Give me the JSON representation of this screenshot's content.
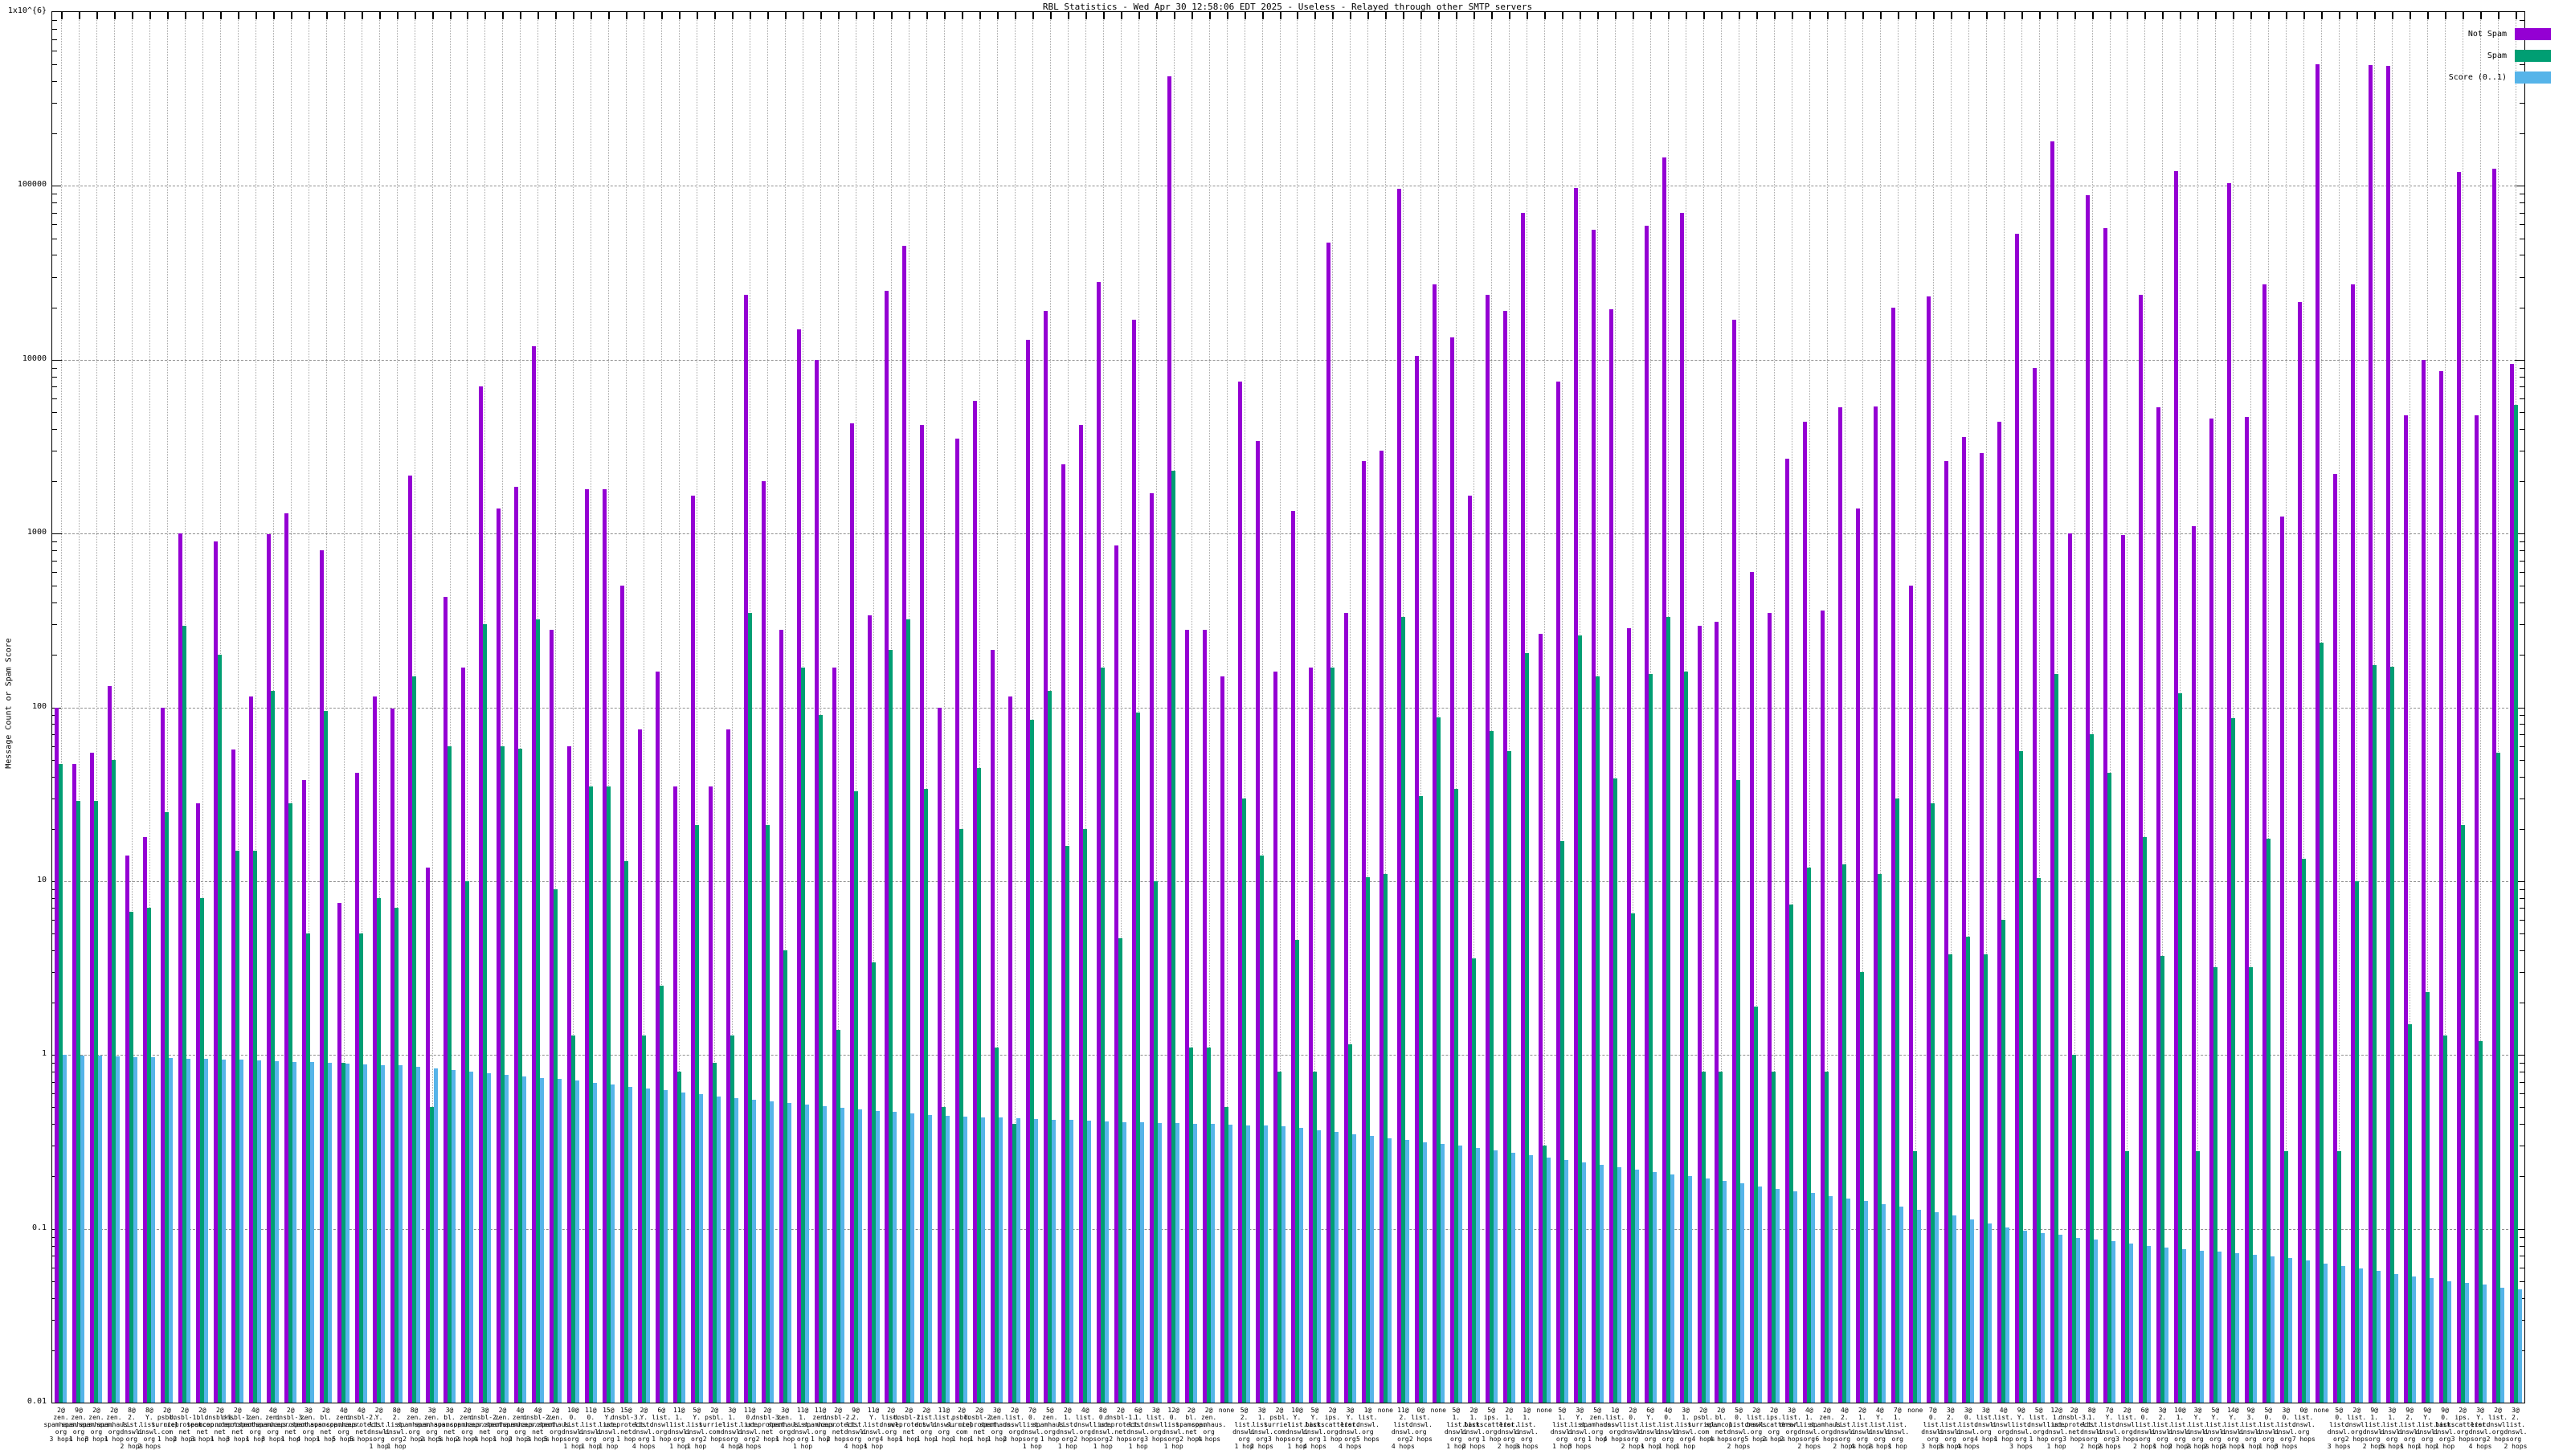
{
  "title": "RBL Statistics - Wed Apr 30 12:58:06 EDT 2025 - Useless - Relayed through other SMTP servers",
  "y_axis": {
    "label": "Message Count or Spam Score",
    "ticks": [
      "1x10^{6}",
      "100000",
      "10000",
      "1000",
      "100",
      "10",
      "1",
      "0.1",
      "0.01"
    ]
  },
  "legend": [
    {
      "label": "Not Spam",
      "color": "#9400d3"
    },
    {
      "label": "Spam",
      "color": "#009e73"
    },
    {
      "label": "Score (0..1)",
      "color": "#56b4e9"
    }
  ],
  "chart_data": {
    "type": "bar",
    "title": "RBL Statistics - Wed Apr 30 12:58:06 EDT 2025 - Useless - Relayed through other SMTP servers",
    "ylabel": "Message Count or Spam Score",
    "xlabel": "",
    "y_scale": "log",
    "ylim": [
      0.01,
      1000000
    ],
    "grid": true,
    "legend_position": "top-right",
    "series_names": [
      "Not Spam",
      "Spam",
      "Score (0..1)"
    ],
    "colors": {
      "not_spam": "#9400d3",
      "spam": "#009e73",
      "score": "#56b4e9"
    },
    "columns": [
      "label",
      "not_spam",
      "spam",
      "score"
    ],
    "groups": [
      [
        "2@zen.spamhaus.org 3 hops",
        100,
        47,
        1.0
      ],
      [
        "9@zen.spamhaus.org 1 hop",
        47,
        29,
        0.993
      ],
      [
        "2@zen.spamhaus.org 3 hops",
        55,
        29,
        0.987
      ],
      [
        "2@zen.spamhaus.org 1 hop",
        132,
        50,
        0.98
      ],
      [
        "8@2.list.dnswl.org 2 hops",
        14,
        6.7,
        0.974
      ],
      [
        "8@Y.list.dnswl.org 2 hops",
        18,
        7,
        0.968
      ],
      [
        "2@psbl.surriel.com 1 hop",
        100,
        25,
        0.961
      ],
      [
        "2@dnsbl-1.uceprotect.net 2 hops",
        1000,
        295,
        0.955
      ],
      [
        "2@bl.spamcop.net 3 hops",
        28,
        8,
        0.949
      ],
      [
        "2@dnsbl-1.uceprotect.net 1 hop",
        900,
        200,
        0.942
      ],
      [
        "2@dnsbl-1.uceprotect.net 3 hops",
        57,
        15,
        0.936
      ],
      [
        "4@zen.spamhaus.org 1 hop",
        115,
        15,
        0.93
      ],
      [
        "4@zen.spamhaus.org 3 hops",
        990,
        125,
        0.922
      ],
      [
        "2@dnsbl-3.uceprotect.net 1 hop",
        1300,
        28,
        0.915
      ],
      [
        "3@zen.spamhaus.org 4 hops",
        38,
        5,
        0.907
      ],
      [
        "2@bl.spamcop.net 1 hop",
        800,
        95,
        0.9
      ],
      [
        "4@zen.spamhaus.org 5 hops",
        7.5,
        0.9,
        0.892
      ],
      [
        "4@dnsbl-2.uceprotect.net 5 hops",
        42,
        5,
        0.885
      ],
      [
        "2@Y.list.dnswl.org 1 hop",
        115,
        8,
        0.877
      ],
      [
        "8@2.list.dnswl.org 1 hop",
        98,
        7,
        0.87
      ],
      [
        "8@zen.spamhaus.org 2 hops",
        2150,
        150,
        0.852
      ],
      [
        "3@zen.spamhaus.org 2 hops",
        12,
        0.5,
        0.835
      ],
      [
        "3@bl.spamcop.net 5 hops",
        430,
        60,
        0.819
      ],
      [
        "2@zen.spamhaus.org 2 hops",
        170,
        10,
        0.802
      ],
      [
        "3@dnsbl-2.uceprotect.net 4 hops",
        7000,
        300,
        0.786
      ],
      [
        "2@zen.spamhaus.org 1 hop",
        1400,
        60,
        0.77
      ],
      [
        "4@zen.spamhaus.org 2 hops",
        1850,
        58,
        0.755
      ],
      [
        "4@dnsbl-2.uceprotect.net 3 hops",
        12000,
        320,
        0.74
      ],
      [
        "2@zen.spamhaus.org 5 hops",
        280,
        9,
        0.725
      ],
      [
        "10@0.list.dnswl.org 1 hop",
        60,
        1.3,
        0.71
      ],
      [
        "11@0.list.dnswl.org 1 hop",
        1800,
        35,
        0.692
      ],
      [
        "15@Y.list.dnswl.org 1 hop",
        1800,
        35,
        0.675
      ],
      [
        "15@dnsbl-3.uceprotect.net 1 hop",
        500,
        13,
        0.658
      ],
      [
        "2@Y.list.dnswl.org 4 hops",
        75,
        1.3,
        0.641
      ],
      [
        "6@list.dnswl.org 1 hop",
        160,
        2.5,
        0.625
      ],
      [
        "11@1.list.dnswl.org 1 hop",
        35,
        0.8,
        0.609
      ],
      [
        "5@Y.list.dnswl.org 1 hop",
        1650,
        21,
        0.594
      ],
      [
        "2@psbl.surriel.com 2 hops",
        35,
        0.9,
        0.579
      ],
      [
        "3@1.list.dnswl.org 4 hops",
        75,
        1.3,
        0.564
      ],
      [
        "11@0.list.dnswl.org 2 hops",
        23500,
        350,
        0.55
      ],
      [
        "2@dnsbl-3.uceprotect.net 2 hops",
        2000,
        21,
        0.539
      ],
      [
        "3@zen.spamhaus.org 1 hop",
        280,
        4,
        0.528
      ],
      [
        "11@1.list.dnswl.org 1 hop",
        15000,
        170,
        0.518
      ],
      [
        "11@zen.spamhaus.org 1 hop",
        10000,
        90,
        0.508
      ],
      [
        "2@dnsbl-2.uceprotect.net 2 hops",
        170,
        1.4,
        0.497
      ],
      [
        "9@2.list.dnswl.org 4 hops",
        4300,
        33,
        0.488
      ],
      [
        "11@Y.list.dnswl.org 1 hop",
        340,
        3.4,
        0.478
      ],
      [
        "2@list.dnswl.org 4 hops",
        25000,
        215,
        0.469
      ],
      [
        "2@dnsbl-2.uceprotect.net 1 hop",
        45000,
        320,
        0.459
      ],
      [
        "2@list.dnswl.org 1 hop",
        4200,
        34,
        0.45
      ],
      [
        "11@list.dnswl.org 1 hop",
        100,
        0.5,
        0.446
      ],
      [
        "2@psbl.surriel.com 1 hop",
        3500,
        20,
        0.443
      ],
      [
        "2@dnsbl-2.uceprotect.net 1 hop",
        5800,
        45,
        0.439
      ],
      [
        "3@zen.spamhaus.org 1 hop",
        215,
        1.1,
        0.436
      ],
      [
        "2@list.dnswl.org 2 hops",
        115,
        0.4,
        0.432
      ],
      [
        "7@0.list.dnswl.org 1 hop",
        13000,
        85,
        0.429
      ],
      [
        "5@zen.spamhaus.org 1 hop",
        19000,
        125,
        0.425
      ],
      [
        "2@1.list.dnswl.org 1 hop",
        2500,
        16,
        0.422
      ],
      [
        "4@list.dnswl.org 2 hops",
        4200,
        20,
        0.418
      ],
      [
        "8@0.list.dnswl.org 1 hop",
        28000,
        170,
        0.415
      ],
      [
        "2@dnsbl-1.uceprotect.net 2 hops",
        850,
        4.7,
        0.412
      ],
      [
        "6@1.list.dnswl.org 1 hop",
        17000,
        93,
        0.41
      ],
      [
        "3@list.dnswl.org 3 hops",
        1700,
        10,
        0.407
      ],
      [
        "12@0.list.dnswl.org 1 hop",
        425000,
        2300,
        0.405
      ],
      [
        "2@bl.spamcop.net 2 hops",
        280,
        1.1,
        0.402
      ],
      [
        "2@zen.spamhaus.org 4 hops",
        280,
        1.1,
        0.4
      ],
      [
        "none",
        150,
        0.5,
        0.397
      ],
      [
        "5@2.list.dnswl.org 1 hop",
        7500,
        30,
        0.395
      ],
      [
        "3@1.list.dnswl.org 2 hops",
        3400,
        14,
        0.392
      ],
      [
        "2@psbl.surriel.com 3 hops",
        160,
        0.8,
        0.39
      ],
      [
        "10@Y.list.dnswl.org 1 hop",
        1350,
        4.6,
        0.38
      ],
      [
        "5@Y.list.dnswl.org 4 hops",
        170,
        0.8,
        0.37
      ],
      [
        "2@ips.backscatterer.org 1 hop",
        47000,
        170,
        0.36
      ],
      [
        "3@Y.list.dnswl.org 4 hops",
        350,
        1.15,
        0.351
      ],
      [
        "1@list.dnswl.org 5 hops",
        2600,
        10.5,
        0.342
      ],
      [
        "none",
        3000,
        11,
        0.333
      ],
      [
        "11@2.list.dnswl.org 4 hops",
        96000,
        330,
        0.325
      ],
      [
        "0@list.dnswl.org 2 hops",
        10500,
        31,
        0.316
      ],
      [
        "none",
        27000,
        88,
        0.308
      ],
      [
        "5@1.list.dnswl.org 1 hop",
        13500,
        34,
        0.3
      ],
      [
        "2@1.list.dnswl.org 2 hops",
        1650,
        3.6,
        0.291
      ],
      [
        "5@ips.backscatterer.org 1 hop",
        23500,
        73,
        0.282
      ],
      [
        "2@1.list.dnswl.org 2 hops",
        19000,
        56,
        0.273
      ],
      [
        "1@1.list.dnswl.org 3 hops",
        70000,
        205,
        0.265
      ],
      [
        "none",
        265,
        0.3,
        0.257
      ],
      [
        "5@1.list.dnswl.org 1 hop",
        7500,
        17,
        0.249
      ],
      [
        "3@Y.list.dnswl.org 3 hops",
        97000,
        260,
        0.241
      ],
      [
        "5@zen.spamhaus.org 1 hop",
        56000,
        150,
        0.234
      ],
      [
        "1@list.dnswl.org 4 hops",
        19500,
        39,
        0.227
      ],
      [
        "2@0.list.dnswl.org 2 hops",
        285,
        6.5,
        0.22
      ],
      [
        "6@Y.list.dnswl.org 1 hop",
        59000,
        155,
        0.213
      ],
      [
        "4@0.list.dnswl.org 1 hop",
        146000,
        330,
        0.206
      ],
      [
        "3@1.list.dnswl.org 1 hop",
        70000,
        160,
        0.2
      ],
      [
        "2@psbl.surriel.com 4 hops",
        295,
        0.8,
        0.194
      ],
      [
        "2@bl.spamcop.net 4 hops",
        310,
        0.8,
        0.188
      ],
      [
        "5@0.list.dnswl.org 2 hops",
        17000,
        38,
        0.182
      ],
      [
        "2@list.dnswl.org 5 hops",
        600,
        1.9,
        0.176
      ],
      [
        "2@ips.backscatterer.org 2 hops",
        350,
        0.8,
        0.17
      ],
      [
        "3@list.dnswl.org 2 hops",
        2700,
        7.3,
        0.165
      ],
      [
        "4@1.list.dnswl.org 2 hops",
        4400,
        12,
        0.16
      ],
      [
        "2@zen.spamhaus.org 6 hops",
        360,
        0.8,
        0.154
      ],
      [
        "4@2.list.dnswl.org 2 hops",
        5300,
        12.5,
        0.149
      ],
      [
        "2@1.list.dnswl.org 4 hops",
        1400,
        3,
        0.144
      ],
      [
        "4@Y.list.dnswl.org 2 hops",
        5400,
        11,
        0.139
      ],
      [
        "7@1.list.dnswl.org 1 hop",
        20000,
        30,
        0.134
      ],
      [
        "none",
        500,
        0.28,
        0.129
      ],
      [
        "7@0.list.dnswl.org 3 hops",
        23000,
        28,
        0.125
      ],
      [
        "3@2.list.dnswl.org 3 hops",
        2600,
        3.8,
        0.119
      ],
      [
        "3@0.list.dnswl.org 4 hops",
        3600,
        4.8,
        0.113
      ],
      [
        "3@list.dnswl.org 4 hops",
        2900,
        3.8,
        0.107
      ],
      [
        "4@list.dnswl.org 1 hop",
        4400,
        6,
        0.102
      ],
      [
        "9@Y.list.dnswl.org 3 hops",
        53000,
        56,
        0.097
      ],
      [
        "5@list.dnswl.org 1 hop",
        9000,
        10.4,
        0.094
      ],
      [
        "12@1.list.dnswl.org 1 hop",
        180000,
        155,
        0.092
      ],
      [
        "2@dnsbl-3.uceprotect.net 3 hops",
        1000,
        1.0,
        0.089
      ],
      [
        "8@1.list.dnswl.org 2 hops",
        88000,
        70,
        0.087
      ],
      [
        "7@Y.list.dnswl.org 2 hops",
        57000,
        42,
        0.085
      ],
      [
        "2@list.dnswl.org 3 hops",
        980,
        0.28,
        0.082
      ],
      [
        "6@0.list.dnswl.org 2 hops",
        23500,
        18,
        0.08
      ],
      [
        "3@2.list.dnswl.org 1 hop",
        5300,
        3.7,
        0.078
      ],
      [
        "10@1.list.dnswl.org 2 hops",
        122000,
        120,
        0.076
      ],
      [
        "3@Y.list.dnswl.org 2 hops",
        1100,
        0.28,
        0.075
      ],
      [
        "5@Y.list.dnswl.org 2 hops",
        4600,
        3.2,
        0.074
      ],
      [
        "14@Y.list.dnswl.org 2 hops",
        104000,
        87,
        0.072
      ],
      [
        "9@3.list.dnswl.org 1 hop",
        4700,
        3.2,
        0.071
      ],
      [
        "5@0.list.dnswl.org 1 hop",
        27000,
        17.5,
        0.069
      ],
      [
        "3@0.list.dnswl.org 3 hops",
        1250,
        0.28,
        0.068
      ],
      [
        "0@list.dnswl.org 7 hops",
        21500,
        13.5,
        0.066
      ],
      [
        "none",
        500000,
        235,
        0.063
      ],
      [
        "5@0.list.dnswl.org 3 hops",
        2200,
        0.28,
        0.061
      ],
      [
        "2@list.dnswl.org 2 hops",
        27000,
        10,
        0.059
      ],
      [
        "9@1.list.dnswl.org 2 hops",
        495000,
        175,
        0.057
      ],
      [
        "3@1.list.dnswl.org 5 hops",
        490000,
        172,
        0.055
      ],
      [
        "9@2.list.dnswl.org 1 hop",
        4800,
        1.5,
        0.053
      ],
      [
        "9@Y.list.dnswl.org 1 hop",
        10000,
        2.3,
        0.052
      ],
      [
        "9@0.list.dnswl.org 1 hop",
        8600,
        1.3,
        0.05
      ],
      [
        "2@ips.backscatterer.org 3 hops",
        120000,
        21,
        0.049
      ],
      [
        "3@Y.list.dnswl.org 4 hops",
        4800,
        1.2,
        0.048
      ],
      [
        "2@list.dnswl.org 2 hops",
        125000,
        55,
        0.046
      ],
      [
        "3@2.list.dnswl.org 2 hops",
        9500,
        5500,
        0.045
      ]
    ]
  }
}
